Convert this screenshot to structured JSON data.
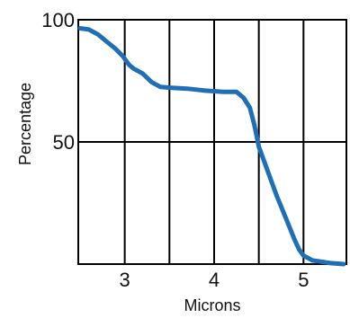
{
  "chart_data": {
    "type": "line",
    "title": "",
    "xlabel": "Microns",
    "ylabel": "Percentage",
    "xlim": [
      2.48,
      5.48
    ],
    "ylim": [
      0,
      100
    ],
    "xticks": [
      3,
      4,
      5
    ],
    "xtick_labels": [
      "3",
      "4",
      "5"
    ],
    "yticks": [
      50,
      100
    ],
    "ytick_labels": [
      "50",
      "100"
    ],
    "grid": "vertical lines every 0.5 micron; horizontal line at 50",
    "legend": "none",
    "line_color": "#1f6fb6",
    "series": [
      {
        "x": [
          2.5,
          2.6,
          2.7,
          2.8,
          2.9,
          2.98,
          3.05,
          3.1,
          3.2,
          3.3,
          3.4,
          3.5,
          3.7,
          3.9,
          4.1,
          4.25,
          4.33,
          4.4,
          4.45,
          4.5,
          4.6,
          4.7,
          4.8,
          4.9,
          4.95,
          5.0,
          5.1,
          5.2,
          5.3,
          5.45
        ],
        "y": [
          96.5,
          96,
          94,
          91,
          88,
          85,
          81.5,
          80,
          78,
          74.5,
          72.5,
          72.2,
          71.8,
          71,
          70.5,
          70.5,
          68,
          64,
          57,
          48,
          38,
          28,
          19,
          10,
          6,
          3.5,
          1.5,
          1,
          0.4,
          0
        ]
      }
    ]
  }
}
